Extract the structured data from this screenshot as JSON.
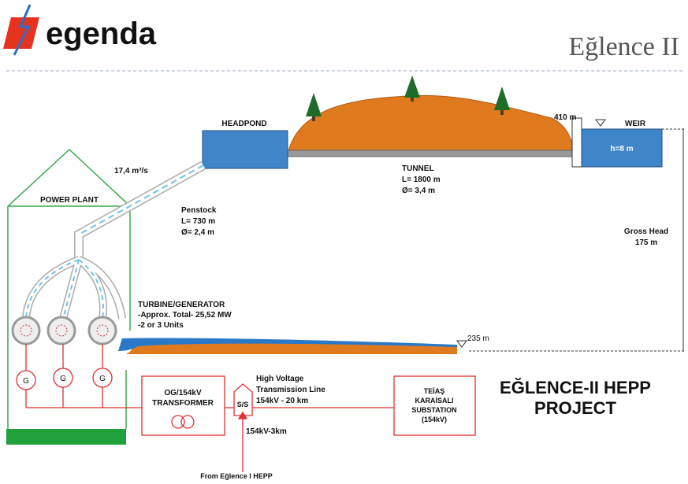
{
  "header": {
    "logo": "egenda",
    "title": "Eğlence II"
  },
  "diagram": {
    "headpond": "HEADPOND",
    "weir": {
      "elevation": "410 m",
      "name": "WEIR",
      "depth": "h=8 m"
    },
    "flow": "17,4 m³/s",
    "tunnel": [
      "TUNNEL",
      "L= 1800 m",
      "Ø= 3,4 m"
    ],
    "power_plant": "POWER PLANT",
    "penstock": [
      "Penstock",
      "L= 730 m",
      "Ø= 2,4 m"
    ],
    "gross_head": [
      "Gross Head",
      "175 m"
    ],
    "turbine": [
      "TURBINE/GENERATOR",
      "-Approx. Total- 25,52 MW",
      "-2 or 3 Units"
    ],
    "tailwater": "235 m",
    "generators": [
      "G",
      "G",
      "G"
    ],
    "transformer": [
      "OG/154kV",
      "TRANSFORMER"
    ],
    "substation": "S/S",
    "transmission": [
      "High Voltage",
      "Transmission Line",
      "154kV - 20 km"
    ],
    "teias": [
      "TEİAŞ",
      "KARAİSALI",
      "SUBSTATION",
      "(154kV)"
    ],
    "project": [
      "EĞLENCE-II HEPP",
      "PROJECT"
    ],
    "feeder": "154kV-3km",
    "source": "From Eğlence I HEPP"
  }
}
